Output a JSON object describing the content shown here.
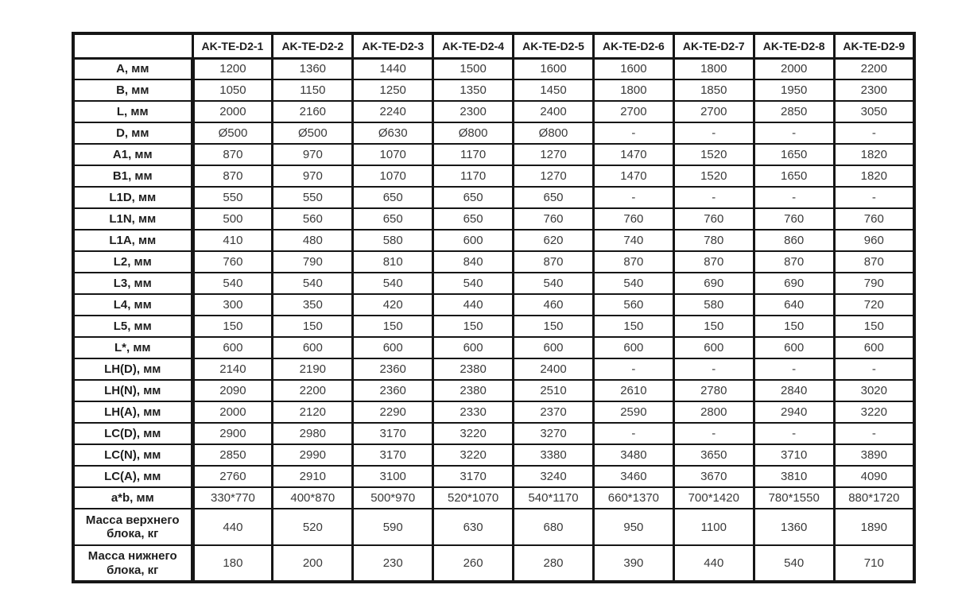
{
  "chart_data": {
    "type": "table",
    "corner_label": "",
    "columns": [
      "AK-TE-D2-1",
      "AK-TE-D2-2",
      "AK-TE-D2-3",
      "AK-TE-D2-4",
      "AK-TE-D2-5",
      "AK-TE-D2-6",
      "AK-TE-D2-7",
      "AK-TE-D2-8",
      "AK-TE-D2-9"
    ],
    "rows": [
      {
        "label": "A, мм",
        "values": [
          "1200",
          "1360",
          "1440",
          "1500",
          "1600",
          "1600",
          "1800",
          "2000",
          "2200"
        ]
      },
      {
        "label": "B, мм",
        "values": [
          "1050",
          "1150",
          "1250",
          "1350",
          "1450",
          "1800",
          "1850",
          "1950",
          "2300"
        ]
      },
      {
        "label": "L, мм",
        "values": [
          "2000",
          "2160",
          "2240",
          "2300",
          "2400",
          "2700",
          "2700",
          "2850",
          "3050"
        ]
      },
      {
        "label": "D, мм",
        "values": [
          "Ø500",
          "Ø500",
          "Ø630",
          "Ø800",
          "Ø800",
          "-",
          "-",
          "-",
          "-"
        ]
      },
      {
        "label": "A1, мм",
        "values": [
          "870",
          "970",
          "1070",
          "1170",
          "1270",
          "1470",
          "1520",
          "1650",
          "1820"
        ]
      },
      {
        "label": "B1, мм",
        "values": [
          "870",
          "970",
          "1070",
          "1170",
          "1270",
          "1470",
          "1520",
          "1650",
          "1820"
        ]
      },
      {
        "label": "L1D, мм",
        "values": [
          "550",
          "550",
          "650",
          "650",
          "650",
          "-",
          "-",
          "-",
          "-"
        ]
      },
      {
        "label": "L1N, мм",
        "values": [
          "500",
          "560",
          "650",
          "650",
          "760",
          "760",
          "760",
          "760",
          "760"
        ]
      },
      {
        "label": "L1A, мм",
        "values": [
          "410",
          "480",
          "580",
          "600",
          "620",
          "740",
          "780",
          "860",
          "960"
        ]
      },
      {
        "label": "L2, мм",
        "values": [
          "760",
          "790",
          "810",
          "840",
          "870",
          "870",
          "870",
          "870",
          "870"
        ]
      },
      {
        "label": "L3, мм",
        "values": [
          "540",
          "540",
          "540",
          "540",
          "540",
          "540",
          "690",
          "690",
          "790"
        ]
      },
      {
        "label": "L4, мм",
        "values": [
          "300",
          "350",
          "420",
          "440",
          "460",
          "560",
          "580",
          "640",
          "720"
        ]
      },
      {
        "label": "L5, мм",
        "values": [
          "150",
          "150",
          "150",
          "150",
          "150",
          "150",
          "150",
          "150",
          "150"
        ]
      },
      {
        "label": "L*, мм",
        "values": [
          "600",
          "600",
          "600",
          "600",
          "600",
          "600",
          "600",
          "600",
          "600"
        ]
      },
      {
        "label": "LH(D), мм",
        "values": [
          "2140",
          "2190",
          "2360",
          "2380",
          "2400",
          "-",
          "-",
          "-",
          "-"
        ]
      },
      {
        "label": "LH(N), мм",
        "values": [
          "2090",
          "2200",
          "2360",
          "2380",
          "2510",
          "2610",
          "2780",
          "2840",
          "3020"
        ]
      },
      {
        "label": "LH(A), мм",
        "values": [
          "2000",
          "2120",
          "2290",
          "2330",
          "2370",
          "2590",
          "2800",
          "2940",
          "3220"
        ]
      },
      {
        "label": "LC(D), мм",
        "values": [
          "2900",
          "2980",
          "3170",
          "3220",
          "3270",
          "-",
          "-",
          "-",
          "-"
        ]
      },
      {
        "label": "LC(N), мм",
        "values": [
          "2850",
          "2990",
          "3170",
          "3220",
          "3380",
          "3480",
          "3650",
          "3710",
          "3890"
        ]
      },
      {
        "label": "LC(A), мм",
        "values": [
          "2760",
          "2910",
          "3100",
          "3170",
          "3240",
          "3460",
          "3670",
          "3810",
          "4090"
        ]
      },
      {
        "label": "a*b, мм",
        "values": [
          "330*770",
          "400*870",
          "500*970",
          "520*1070",
          "540*1170",
          "660*1370",
          "700*1420",
          "780*1550",
          "880*1720"
        ]
      },
      {
        "label": "Масса верхнего блока, кг",
        "values": [
          "440",
          "520",
          "590",
          "630",
          "680",
          "950",
          "1100",
          "1360",
          "1890"
        ],
        "tall": true
      },
      {
        "label": "Масса нижнего блока, кг",
        "values": [
          "180",
          "200",
          "230",
          "260",
          "280",
          "390",
          "440",
          "540",
          "710"
        ],
        "tall": true
      }
    ]
  },
  "colors": {
    "border": "#161616",
    "label_text": "#1e1e1e",
    "value_text": "#3a3a3a",
    "background": "#ffffff"
  }
}
